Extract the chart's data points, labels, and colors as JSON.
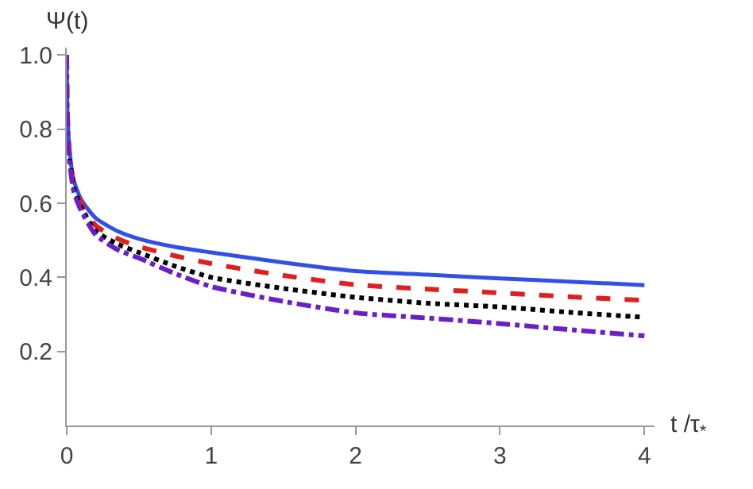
{
  "chart_data": {
    "type": "line",
    "xlabel": "t /τ$_{*}$",
    "ylabel": "Ψ(t)",
    "xlim": [
      0,
      4.07
    ],
    "ylim": [
      0,
      1.02
    ],
    "xticks": [
      0,
      1,
      2,
      3,
      4
    ],
    "yticks": [
      {
        "value": 0.2,
        "label": "0.2"
      },
      {
        "value": 0.4,
        "label": "0.4"
      },
      {
        "value": 0.6,
        "label": "0.6"
      },
      {
        "value": 0.8,
        "label": "0.8"
      },
      {
        "value": 1.0,
        "label": "1.0"
      }
    ],
    "marker": "none",
    "x": [
      0,
      0.005,
      0.02,
      0.05,
      0.1,
      0.2,
      0.35,
      0.5,
      0.75,
      1,
      1.5,
      2,
      2.5,
      3,
      3.5,
      4
    ],
    "series": [
      {
        "color": "#3050e8",
        "line_style": "solid",
        "values": [
          1.0,
          0.85,
          0.74,
          0.66,
          0.61,
          0.56,
          0.525,
          0.504,
          0.482,
          0.467,
          0.44,
          0.417,
          0.407,
          0.397,
          0.388,
          0.379
        ]
      },
      {
        "color": "#e02020",
        "line_style": "dashed",
        "values": [
          1.0,
          0.84,
          0.73,
          0.65,
          0.6,
          0.54,
          0.505,
          0.483,
          0.458,
          0.437,
          0.405,
          0.38,
          0.368,
          0.358,
          0.347,
          0.338
        ]
      },
      {
        "color": "#000000",
        "line_style": "dotted",
        "values": [
          null,
          null,
          0.72,
          0.64,
          0.59,
          0.525,
          0.49,
          0.467,
          0.43,
          0.4,
          0.37,
          0.346,
          0.33,
          0.32,
          0.305,
          0.292
        ]
      },
      {
        "color": "#6a1fc8",
        "line_style": "dashdot",
        "values": [
          1.0,
          0.82,
          0.71,
          0.63,
          0.58,
          0.515,
          0.475,
          0.452,
          0.41,
          0.375,
          0.335,
          0.304,
          0.29,
          0.275,
          0.258,
          0.242
        ]
      }
    ]
  }
}
